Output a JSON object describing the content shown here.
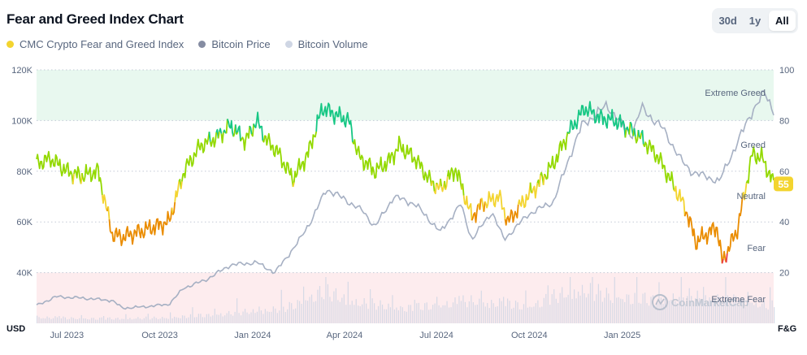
{
  "title": "Fear and Greed Index Chart",
  "range_tabs": [
    {
      "label": "30d",
      "active": false
    },
    {
      "label": "1y",
      "active": false
    },
    {
      "label": "All",
      "active": true
    }
  ],
  "legend": [
    {
      "label": "CMC Crypto Fear and Greed Index",
      "color": "#F3D42F"
    },
    {
      "label": "Bitcoin Price",
      "color": "#858CA2"
    },
    {
      "label": "Bitcoin Volume",
      "color": "#CFD6E4"
    }
  ],
  "watermark": "CoinMarketCap",
  "colors": {
    "greed_zone": "#E8F8EF",
    "fear_zone": "#FDECEE",
    "extreme_greed": "#16C784",
    "greed": "#93D900",
    "neutral": "#F3D42F",
    "fear": "#EA8C00",
    "extreme_fear": "#EA3943",
    "price_line": "#A6B0C3",
    "current_badge": "#F3D42F"
  },
  "chart_data": {
    "type": "line",
    "x_axis": {
      "ticks": [
        "Jul 2023",
        "Oct 2023",
        "Jan 2024",
        "Apr 2024",
        "Jul 2024",
        "Oct 2024",
        "Jan 2025"
      ],
      "range": [
        "2023-06-01",
        "2025-05-31"
      ]
    },
    "y_left": {
      "unit_label": "USD",
      "ticks": [
        "40K",
        "60K",
        "80K",
        "100K",
        "120K"
      ],
      "range": [
        20000,
        120000
      ]
    },
    "y_right": {
      "unit_label": "F&G",
      "ticks": [
        "20",
        "40",
        "60",
        "80",
        "100"
      ],
      "range": [
        0,
        100
      ]
    },
    "zone_labels": [
      "Extreme Greed",
      "Greed",
      "Neutral",
      "Fear",
      "Extreme Fear"
    ],
    "current_value": "55",
    "series": [
      {
        "name": "CMC Crypto Fear and Greed Index",
        "x": [
          "2023-06-01",
          "2023-06-15",
          "2023-07-01",
          "2023-07-15",
          "2023-08-01",
          "2023-08-15",
          "2023-08-25",
          "2023-09-10",
          "2023-09-25",
          "2023-10-10",
          "2023-10-25",
          "2023-11-10",
          "2023-11-25",
          "2023-12-10",
          "2023-12-25",
          "2024-01-05",
          "2024-01-15",
          "2024-01-25",
          "2024-02-10",
          "2024-02-25",
          "2024-03-10",
          "2024-03-25",
          "2024-04-05",
          "2024-04-15",
          "2024-05-01",
          "2024-05-15",
          "2024-05-25",
          "2024-06-10",
          "2024-06-25",
          "2024-07-05",
          "2024-07-20",
          "2024-08-05",
          "2024-08-15",
          "2024-09-01",
          "2024-09-10",
          "2024-09-25",
          "2024-10-10",
          "2024-10-25",
          "2024-11-10",
          "2024-11-25",
          "2024-12-10",
          "2024-12-25",
          "2025-01-10",
          "2025-01-20",
          "2025-02-05",
          "2025-02-20",
          "2025-03-05",
          "2025-03-15",
          "2025-03-25",
          "2025-04-05",
          "2025-04-10",
          "2025-04-25",
          "2025-05-10",
          "2025-05-20",
          "2025-05-31"
        ],
        "values": [
          63,
          65,
          60,
          58,
          60,
          35,
          34,
          36,
          38,
          40,
          60,
          70,
          73,
          78,
          72,
          80,
          72,
          68,
          57,
          67,
          85,
          82,
          80,
          66,
          60,
          64,
          70,
          65,
          56,
          53,
          61,
          42,
          47,
          50,
          40,
          48,
          55,
          63,
          76,
          85,
          81,
          80,
          76,
          73,
          66,
          55,
          45,
          32,
          35,
          38,
          24,
          37,
          67,
          65,
          55
        ]
      },
      {
        "name": "Bitcoin Price",
        "x": [
          "2023-06-01",
          "2023-06-20",
          "2023-07-15",
          "2023-08-15",
          "2023-08-25",
          "2023-09-15",
          "2023-10-10",
          "2023-10-25",
          "2023-11-15",
          "2023-12-10",
          "2024-01-05",
          "2024-01-23",
          "2024-02-15",
          "2024-03-01",
          "2024-03-14",
          "2024-04-01",
          "2024-04-20",
          "2024-05-01",
          "2024-05-20",
          "2024-06-10",
          "2024-07-05",
          "2024-07-25",
          "2024-08-05",
          "2024-08-25",
          "2024-09-06",
          "2024-09-30",
          "2024-10-25",
          "2024-11-12",
          "2024-11-22",
          "2024-12-17",
          "2025-01-10",
          "2025-01-20",
          "2025-02-10",
          "2025-03-01",
          "2025-03-10",
          "2025-04-07",
          "2025-04-20",
          "2025-05-10",
          "2025-05-22",
          "2025-05-31"
        ],
        "values": [
          27000,
          30500,
          30000,
          29000,
          26000,
          26500,
          27500,
          34000,
          37000,
          43000,
          44000,
          40000,
          52000,
          62000,
          73000,
          69000,
          64000,
          58000,
          70000,
          67000,
          56000,
          67000,
          53000,
          64000,
          53000,
          63000,
          68000,
          88000,
          98000,
          106000,
          94000,
          105000,
          97000,
          84000,
          80000,
          76000,
          87000,
          104000,
          111000,
          104000
        ]
      },
      {
        "name": "Bitcoin Volume",
        "x": [
          "2023-06-01",
          "2023-08-01",
          "2023-10-01",
          "2023-12-01",
          "2024-02-01",
          "2024-03-10",
          "2024-04-15",
          "2024-06-01",
          "2024-08-05",
          "2024-10-01",
          "2024-11-15",
          "2024-12-20",
          "2025-02-01",
          "2025-03-10",
          "2025-04-10",
          "2025-05-31"
        ],
        "values": [
          10,
          8,
          9,
          16,
          25,
          55,
          35,
          26,
          38,
          30,
          58,
          48,
          40,
          46,
          42,
          30
        ]
      }
    ]
  }
}
